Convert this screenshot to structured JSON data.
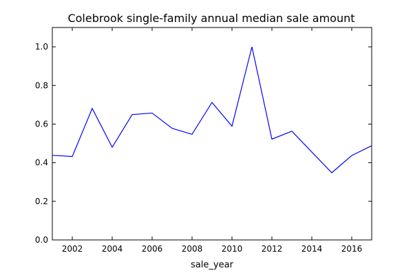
{
  "chart_data": {
    "type": "line",
    "title": "Colebrook single-family annual median sale amount",
    "xlabel": "sale_year",
    "ylabel": "",
    "xlim": [
      2001,
      2017
    ],
    "ylim": [
      0.0,
      1.1
    ],
    "xticks": [
      2002,
      2004,
      2006,
      2008,
      2010,
      2012,
      2014,
      2016
    ],
    "yticks": [
      0.0,
      0.2,
      0.4,
      0.6,
      0.8,
      1.0
    ],
    "ytick_labels": [
      "0.0",
      "0.2",
      "0.4",
      "0.6",
      "0.8",
      "1.0"
    ],
    "grid": false,
    "series": [
      {
        "color": "#0000ff",
        "x": [
          2001,
          2002,
          2003,
          2004,
          2005,
          2006,
          2007,
          2008,
          2009,
          2010,
          2011,
          2012,
          2013,
          2014,
          2015,
          2016,
          2017
        ],
        "y": [
          0.438,
          0.432,
          0.681,
          0.48,
          0.649,
          0.657,
          0.578,
          0.547,
          0.712,
          0.589,
          1.0,
          0.522,
          0.563,
          0.455,
          0.348,
          0.437,
          0.488
        ]
      }
    ]
  }
}
